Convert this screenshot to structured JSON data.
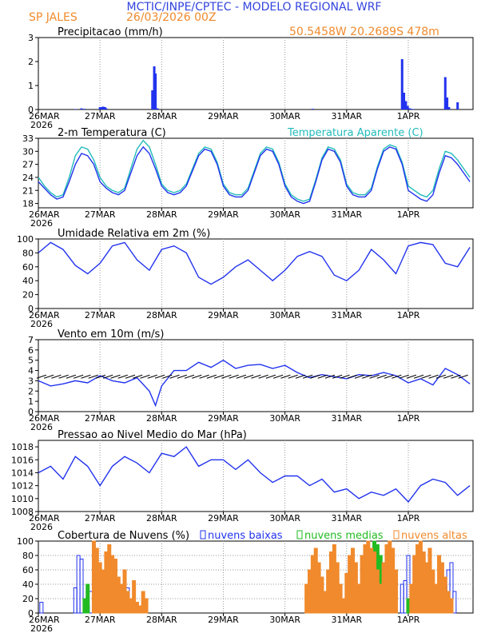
{
  "header": {
    "title": "MCTIC/INPE/CPTEC - MODELO REGIONAL WRF",
    "location": "SP JALES",
    "run": "26/03/2026 00Z",
    "coords": "50.5458W 20.2689S 478m"
  },
  "colors": {
    "blue": "#2233ee",
    "orange": "#f08a2c",
    "green": "#22bb22",
    "cyan": "#22bbbb",
    "title": "#3344dd"
  },
  "x_axis": {
    "labels": [
      "26MAR",
      "27MAR",
      "28MAR",
      "29MAR",
      "30MAR",
      "31MAR",
      "1APR"
    ],
    "year": "2026"
  },
  "chart_data": [
    {
      "type": "bar",
      "title": "Precipitacao (mm/h)",
      "ylim": [
        0,
        3
      ],
      "yticks": [
        "0",
        "1",
        "2",
        "3"
      ],
      "x": [
        0.6,
        0.7,
        0.75,
        1.0,
        1.02,
        1.05,
        1.08,
        1.1,
        1.85,
        1.88,
        1.9,
        1.93,
        4.45,
        5.9,
        5.93,
        5.96,
        5.99,
        6.02,
        6.05,
        6.08,
        6.6,
        6.63,
        6.66,
        6.8
      ],
      "values": [
        0.02,
        0.05,
        0.03,
        0.1,
        0.1,
        0.12,
        0.1,
        0.05,
        0.8,
        1.8,
        1.5,
        0.05,
        0.03,
        2.1,
        0.7,
        0.35,
        0.15,
        0.05,
        0.03,
        0.02,
        1.35,
        0.5,
        0.1,
        0.3
      ]
    },
    {
      "type": "line",
      "title": "2-m Temperatura (C)",
      "legend": "Temperatura Aparente (C)",
      "ylim": [
        17,
        33
      ],
      "yticks": [
        "18",
        "21",
        "24",
        "27",
        "30",
        "33"
      ],
      "series": [
        {
          "name": "2-m Temperatura (C)",
          "x": [
            0,
            0.1,
            0.2,
            0.3,
            0.4,
            0.5,
            0.6,
            0.7,
            0.8,
            0.9,
            1.0,
            1.1,
            1.2,
            1.3,
            1.4,
            1.5,
            1.6,
            1.7,
            1.8,
            1.9,
            2.0,
            2.1,
            2.2,
            2.3,
            2.4,
            2.5,
            2.6,
            2.7,
            2.8,
            2.9,
            3.0,
            3.1,
            3.2,
            3.3,
            3.4,
            3.5,
            3.6,
            3.7,
            3.8,
            3.9,
            4.0,
            4.1,
            4.2,
            4.3,
            4.4,
            4.5,
            4.6,
            4.7,
            4.8,
            4.9,
            5.0,
            5.1,
            5.2,
            5.3,
            5.4,
            5.5,
            5.6,
            5.7,
            5.8,
            5.9,
            6.0,
            6.1,
            6.2,
            6.3,
            6.4,
            6.5,
            6.6,
            6.7,
            6.8,
            6.9,
            7.0
          ],
          "values": [
            23,
            21.5,
            20,
            19,
            19.5,
            23,
            27,
            29.5,
            29,
            27,
            23,
            21.5,
            20.5,
            20,
            21,
            25,
            29,
            31,
            29.5,
            26,
            22,
            20.5,
            20,
            20.5,
            22,
            25.5,
            29,
            30.5,
            30,
            27,
            22,
            20,
            19.5,
            19.5,
            21,
            25,
            29,
            30.5,
            30,
            27,
            22,
            19.5,
            18.5,
            18,
            18.5,
            23,
            28,
            30.5,
            30,
            27.5,
            22,
            20,
            19.5,
            19.5,
            21,
            26,
            30,
            31,
            30.5,
            27,
            21,
            20,
            19,
            18.5,
            20,
            25,
            29,
            28.5,
            27,
            25,
            23
          ]
        },
        {
          "name": "Temperatura Aparente (C)",
          "x": [
            0,
            0.1,
            0.2,
            0.3,
            0.4,
            0.5,
            0.6,
            0.7,
            0.8,
            0.9,
            1.0,
            1.1,
            1.2,
            1.3,
            1.4,
            1.5,
            1.6,
            1.7,
            1.8,
            1.9,
            2.0,
            2.1,
            2.2,
            2.3,
            2.4,
            2.5,
            2.6,
            2.7,
            2.8,
            2.9,
            3.0,
            3.1,
            3.2,
            3.3,
            3.4,
            3.5,
            3.6,
            3.7,
            3.8,
            3.9,
            4.0,
            4.1,
            4.2,
            4.3,
            4.4,
            4.5,
            4.6,
            4.7,
            4.8,
            4.9,
            5.0,
            5.1,
            5.2,
            5.3,
            5.4,
            5.5,
            5.6,
            5.7,
            5.8,
            5.9,
            6.0,
            6.1,
            6.2,
            6.3,
            6.4,
            6.5,
            6.6,
            6.7,
            6.8,
            6.9,
            7.0
          ],
          "values": [
            24,
            22,
            20.5,
            19.5,
            20,
            24,
            29,
            31,
            30.5,
            28,
            24,
            22,
            21,
            20.5,
            21.5,
            26,
            30.5,
            32.5,
            31,
            27,
            22.5,
            21,
            20.5,
            21,
            22.5,
            26,
            29.5,
            31,
            30.5,
            27.5,
            22.5,
            20.5,
            20,
            20,
            21.5,
            25.5,
            29.5,
            31,
            30.5,
            27.5,
            22.5,
            20,
            19,
            18.5,
            19,
            23.5,
            28.5,
            31,
            30.5,
            28,
            22.5,
            20.5,
            20,
            20,
            21.5,
            26.5,
            30.5,
            31.5,
            31,
            27.5,
            22,
            21,
            20,
            19.5,
            21,
            26,
            30,
            29.5,
            28,
            26,
            24
          ]
        }
      ]
    },
    {
      "type": "line",
      "title": "Umidade Relativa em 2m (%)",
      "ylim": [
        0,
        100
      ],
      "yticks": [
        "0",
        "20",
        "40",
        "60",
        "80",
        "100"
      ],
      "series": [
        {
          "name": "Umidade Relativa em 2m (%)",
          "x": [
            0,
            0.2,
            0.4,
            0.6,
            0.8,
            1.0,
            1.2,
            1.4,
            1.6,
            1.8,
            2.0,
            2.2,
            2.4,
            2.6,
            2.8,
            3.0,
            3.2,
            3.4,
            3.6,
            3.8,
            4.0,
            4.2,
            4.4,
            4.6,
            4.8,
            5.0,
            5.2,
            5.4,
            5.6,
            5.8,
            6.0,
            6.2,
            6.4,
            6.6,
            6.8,
            7.0
          ],
          "values": [
            80,
            95,
            85,
            62,
            50,
            65,
            90,
            95,
            70,
            55,
            85,
            90,
            80,
            45,
            35,
            45,
            60,
            70,
            55,
            40,
            55,
            75,
            82,
            75,
            48,
            40,
            55,
            85,
            70,
            50,
            90,
            95,
            92,
            65,
            60,
            88
          ]
        }
      ]
    },
    {
      "type": "line",
      "title": "Vento em 10m (m/s)",
      "ylim": [
        0,
        7
      ],
      "yticks": [
        "0",
        "1",
        "2",
        "3",
        "4",
        "5",
        "6",
        "7"
      ],
      "series": [
        {
          "name": "Vento em 10m (m/s)",
          "x": [
            0,
            0.2,
            0.4,
            0.6,
            0.8,
            1.0,
            1.2,
            1.4,
            1.6,
            1.8,
            1.9,
            2.0,
            2.2,
            2.4,
            2.6,
            2.8,
            3.0,
            3.2,
            3.4,
            3.6,
            3.8,
            4.0,
            4.2,
            4.4,
            4.6,
            4.8,
            5.0,
            5.2,
            5.4,
            5.6,
            5.8,
            6.0,
            6.2,
            6.4,
            6.6,
            6.8,
            7.0
          ],
          "values": [
            3,
            2.5,
            2.7,
            3,
            2.8,
            3.5,
            3,
            2.8,
            3.3,
            2,
            0.6,
            2.5,
            4,
            4,
            4.8,
            4.3,
            5,
            4.2,
            4.5,
            4.6,
            4.2,
            4.5,
            3.8,
            3.3,
            3.6,
            3.4,
            3.2,
            3.6,
            3.5,
            3.8,
            3.5,
            2.8,
            3.2,
            2.6,
            4.2,
            3.6,
            2.7
          ]
        }
      ]
    },
    {
      "type": "line",
      "title": "Pressao ao Nivel Medio do Mar (hPa)",
      "ylim": [
        1008,
        1019
      ],
      "yticks": [
        "1008",
        "1010",
        "1012",
        "1014",
        "1016",
        "1018"
      ],
      "series": [
        {
          "name": "Pressao ao Nivel Medio do Mar (hPa)",
          "x": [
            0,
            0.2,
            0.4,
            0.6,
            0.8,
            1.0,
            1.2,
            1.4,
            1.6,
            1.8,
            2.0,
            2.2,
            2.4,
            2.6,
            2.8,
            3.0,
            3.2,
            3.4,
            3.6,
            3.8,
            4.0,
            4.2,
            4.4,
            4.6,
            4.8,
            5.0,
            5.2,
            5.4,
            5.6,
            5.8,
            6.0,
            6.2,
            6.4,
            6.6,
            6.8,
            7.0
          ],
          "values": [
            1014,
            1015,
            1013,
            1016.5,
            1015,
            1012,
            1015,
            1016.5,
            1015.5,
            1014,
            1017,
            1016.5,
            1018,
            1015,
            1016,
            1016,
            1014.5,
            1016,
            1014,
            1012.5,
            1013.5,
            1013.5,
            1012,
            1013,
            1011,
            1011.5,
            1010,
            1011,
            1010.5,
            1011.5,
            1009.5,
            1012,
            1013,
            1012.5,
            1010.5,
            1012
          ]
        }
      ]
    },
    {
      "type": "bar",
      "title": "Cobertura de Nuvens (%)",
      "ylim": [
        0,
        100
      ],
      "yticks": [
        "0",
        "20",
        "40",
        "60",
        "80",
        "100"
      ],
      "legend": [
        "nuvens baixas",
        "nuvens medias",
        "nuvens altas"
      ],
      "series": [
        {
          "name": "nuvens baixas",
          "x": [
            0.05,
            0.6,
            0.65,
            0.7,
            0.8,
            0.85,
            1.25,
            1.3,
            1.35,
            1.4,
            1.45,
            5.9,
            5.95,
            6.0,
            6.05,
            6.6,
            6.65,
            6.7,
            6.75
          ],
          "values": [
            15,
            35,
            80,
            75,
            10,
            30,
            20,
            30,
            25,
            40,
            35,
            40,
            45,
            80,
            20,
            40,
            60,
            70,
            30
          ]
        },
        {
          "name": "nuvens medias",
          "x": [
            0.75,
            0.8,
            1.1,
            5.3,
            5.35,
            5.4,
            5.45,
            5.5,
            5.55,
            5.6,
            5.65,
            5.7,
            5.75,
            6.0,
            6.1
          ],
          "values": [
            20,
            40,
            30,
            30,
            85,
            90,
            100,
            95,
            80,
            70,
            50,
            90,
            40,
            20,
            10
          ]
        },
        {
          "name": "nuvens altas",
          "x": [
            0.9,
            0.95,
            1.0,
            1.05,
            1.1,
            1.15,
            1.2,
            1.25,
            1.3,
            1.35,
            1.4,
            1.45,
            1.5,
            1.55,
            1.6,
            1.65,
            1.7,
            1.75,
            4.35,
            4.4,
            4.45,
            4.5,
            4.55,
            4.6,
            4.65,
            4.7,
            4.75,
            4.8,
            4.85,
            4.9,
            4.95,
            5.0,
            5.05,
            5.1,
            5.15,
            5.2,
            5.25,
            5.3,
            5.35,
            5.4,
            5.45,
            5.5,
            5.55,
            5.6,
            5.65,
            5.7,
            5.75,
            5.8,
            6.05,
            6.1,
            6.15,
            6.2,
            6.25,
            6.3,
            6.35,
            6.4,
            6.45,
            6.5,
            6.55,
            6.6,
            6.65,
            6.7
          ],
          "values": [
            100,
            90,
            70,
            60,
            85,
            95,
            80,
            75,
            50,
            40,
            60,
            30,
            20,
            45,
            15,
            10,
            30,
            20,
            40,
            60,
            80,
            90,
            70,
            50,
            30,
            60,
            85,
            95,
            70,
            40,
            20,
            55,
            80,
            90,
            70,
            40,
            80,
            95,
            100,
            90,
            85,
            60,
            40,
            70,
            95,
            100,
            90,
            60,
            40,
            80,
            95,
            100,
            85,
            70,
            90,
            60,
            40,
            80,
            70,
            50,
            30,
            20
          ]
        }
      ]
    }
  ]
}
